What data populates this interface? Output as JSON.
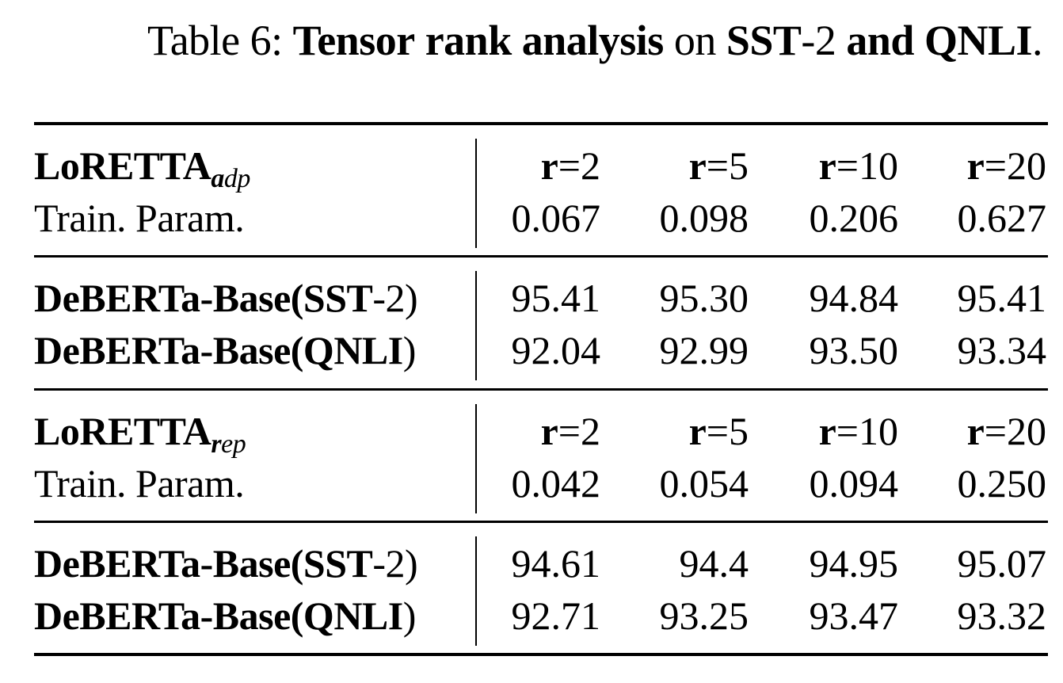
{
  "caption": {
    "prefix": "Table 6: ",
    "w1": "Tensor",
    "s1": " ",
    "w2": "rank analysis",
    "s2": " on ",
    "w3": "SST",
    "s3": "-2 ",
    "w4": "and QNLI",
    "s4": "."
  },
  "sections": [
    {
      "header": {
        "name": "LoRETTA",
        "sub_bold": "a",
        "sub_italic": "dp",
        "ranks": [
          {
            "r": "r",
            "eq": "=",
            "v": "2"
          },
          {
            "r": "r",
            "eq": "=",
            "v": "5"
          },
          {
            "r": "r",
            "eq": "=",
            "v": "10"
          },
          {
            "r": "r",
            "eq": "=",
            "v": "20"
          }
        ]
      },
      "params": {
        "label": "Train. Param.",
        "values": [
          "0.067",
          "0.098",
          "0.206",
          "0.627"
        ]
      },
      "results": [
        {
          "model": "DeBERTa-Base(",
          "dataset": "SST",
          "suffix": "-2)",
          "values": [
            "95.41",
            "95.30",
            "94.84",
            "95.41"
          ]
        },
        {
          "model": "DeBERTa-Base(",
          "dataset": "QNLI",
          "suffix": ")",
          "values": [
            "92.04",
            "92.99",
            "93.50",
            "93.34"
          ]
        }
      ]
    },
    {
      "header": {
        "name": "LoRETTA",
        "sub_bold": "r",
        "sub_italic": "ep",
        "ranks": [
          {
            "r": "r",
            "eq": "=",
            "v": "2"
          },
          {
            "r": "r",
            "eq": "=",
            "v": "5"
          },
          {
            "r": "r",
            "eq": "=",
            "v": "10"
          },
          {
            "r": "r",
            "eq": "=",
            "v": "20"
          }
        ]
      },
      "params": {
        "label": "Train. Param.",
        "values": [
          "0.042",
          "0.054",
          "0.094",
          "0.250"
        ]
      },
      "results": [
        {
          "model": "DeBERTa-Base(",
          "dataset": "SST",
          "suffix": "-2)",
          "values": [
            "94.61",
            "94.4",
            "94.95",
            "95.07"
          ]
        },
        {
          "model": "DeBERTa-Base(",
          "dataset": "QNLI",
          "suffix": ")",
          "values": [
            "92.71",
            "93.25",
            "93.47",
            "93.32"
          ]
        }
      ]
    }
  ]
}
